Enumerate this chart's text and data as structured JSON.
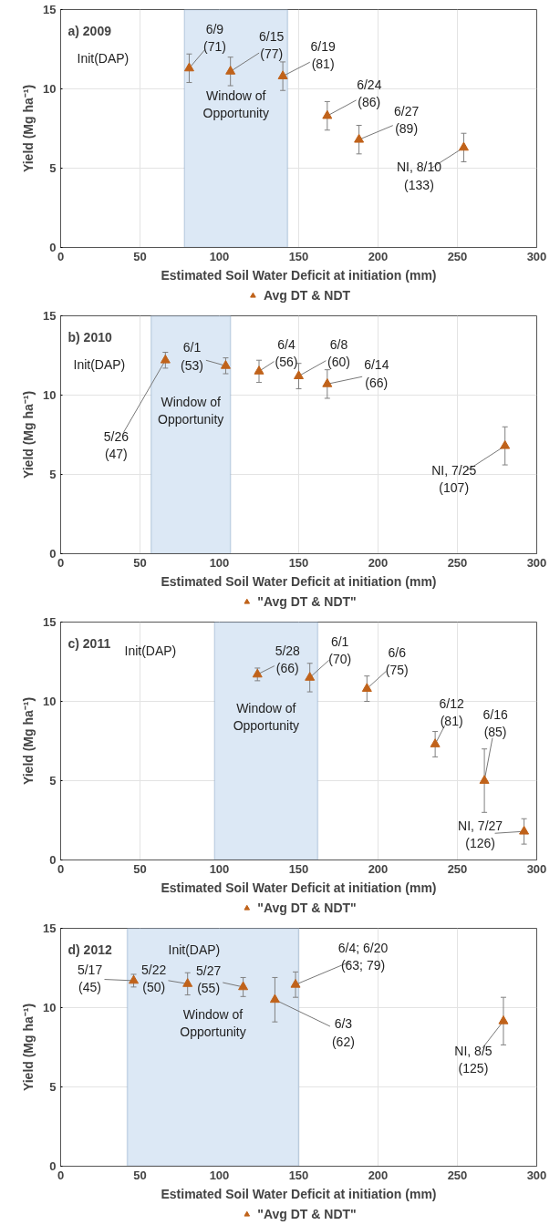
{
  "chart_data": [
    {
      "type": "scatter",
      "title": "a) 2009",
      "xlabel": "Estimated Soil Water Deficit at initiation (mm)",
      "ylabel": "Yield (Mg ha⁻¹)",
      "xlim": [
        0,
        300
      ],
      "ylim": [
        0,
        15
      ],
      "xticks": [
        0,
        50,
        100,
        150,
        200,
        250,
        300
      ],
      "yticks": [
        0,
        5,
        10,
        15
      ],
      "grid": true,
      "legend": "bottom",
      "marker": "triangle",
      "series": [
        {
          "name": "Avg DT & NDT",
          "color": "#c0621a",
          "x": [
            81,
            107,
            140,
            168,
            188,
            254
          ],
          "values": [
            11.3,
            11.1,
            10.8,
            8.3,
            6.8,
            6.3
          ],
          "errors": [
            0.9,
            0.9,
            0.9,
            0.9,
            0.9,
            0.9
          ]
        }
      ],
      "bands": [
        {
          "axis": "x",
          "from": 78,
          "to": 143,
          "label": "Window of Opportunity",
          "color": "#dce8f5"
        }
      ],
      "annotations": [
        "Init(DAP)",
        {
          "text": "6/9 (71)",
          "x": 81,
          "y": 11.3
        },
        {
          "text": "6/15 (77)",
          "x": 107,
          "y": 11.1
        },
        {
          "text": "6/19 (81)",
          "x": 140,
          "y": 10.8
        },
        {
          "text": "6/24 (86)",
          "x": 168,
          "y": 8.3
        },
        {
          "text": "6/27 (89)",
          "x": 188,
          "y": 6.8
        },
        {
          "text": "NI, 8/10 (133)",
          "x": 254,
          "y": 6.3
        }
      ]
    },
    {
      "type": "scatter",
      "title": "b) 2010",
      "xlabel": "Estimated Soil Water Deficit at initiation (mm)",
      "ylabel": "Yield (Mg ha⁻¹)",
      "xlim": [
        0,
        300
      ],
      "ylim": [
        0,
        15
      ],
      "xticks": [
        0,
        50,
        100,
        150,
        200,
        250,
        300
      ],
      "yticks": [
        0,
        5,
        10,
        15
      ],
      "grid": true,
      "legend": "bottom",
      "marker": "triangle",
      "series": [
        {
          "name": "\"Avg DT & NDT\"",
          "color": "#c0621a",
          "x": [
            66,
            104,
            125,
            150,
            168,
            280
          ],
          "values": [
            12.2,
            11.85,
            11.5,
            11.2,
            10.7,
            6.8
          ],
          "errors": [
            0.5,
            0.5,
            0.7,
            0.8,
            0.9,
            1.2
          ]
        }
      ],
      "bands": [
        {
          "axis": "x",
          "from": 57,
          "to": 107,
          "label": "Window of Opportunity",
          "color": "#dce8f5"
        }
      ],
      "annotations": [
        "Init(DAP)",
        {
          "text": "5/26 (47)",
          "x": 66,
          "y": 12.2
        },
        {
          "text": "6/1 (53)",
          "x": 104,
          "y": 11.85
        },
        {
          "text": "6/4 (56)",
          "x": 125,
          "y": 11.5
        },
        {
          "text": "6/8 (60)",
          "x": 150,
          "y": 11.2
        },
        {
          "text": "6/14 (66)",
          "x": 168,
          "y": 10.7
        },
        {
          "text": "NI, 7/25 (107)",
          "x": 280,
          "y": 6.8
        }
      ]
    },
    {
      "type": "scatter",
      "title": "c) 2011",
      "xlabel": "Estimated Soil Water Deficit at initiation (mm)",
      "ylabel": "Yield (Mg ha⁻¹)",
      "xlim": [
        0,
        300
      ],
      "ylim": [
        0,
        15
      ],
      "xticks": [
        0,
        50,
        100,
        150,
        200,
        250,
        300
      ],
      "yticks": [
        0,
        5,
        10,
        15
      ],
      "grid": true,
      "legend": "bottom",
      "marker": "triangle",
      "series": [
        {
          "name": "\"Avg DT & NDT\"",
          "color": "#c0621a",
          "x": [
            124,
            157,
            193,
            236,
            267,
            292
          ],
          "values": [
            11.7,
            11.5,
            10.8,
            7.3,
            5.0,
            1.8
          ],
          "errors": [
            0.4,
            0.9,
            0.8,
            0.8,
            2.0,
            0.8
          ]
        }
      ],
      "bands": [
        {
          "axis": "x",
          "from": 97,
          "to": 162,
          "label": "Window of Opportunity",
          "color": "#dce8f5"
        }
      ],
      "annotations": [
        "Init(DAP)",
        {
          "text": "5/28 (66)",
          "x": 124,
          "y": 11.7
        },
        {
          "text": "6/1 (70)",
          "x": 157,
          "y": 11.5
        },
        {
          "text": "6/6 (75)",
          "x": 193,
          "y": 10.8
        },
        {
          "text": "6/12 (81)",
          "x": 236,
          "y": 7.3
        },
        {
          "text": "6/16 (85)",
          "x": 267,
          "y": 5.0
        },
        {
          "text": "NI, 7/27 (126)",
          "x": 292,
          "y": 1.8
        }
      ]
    },
    {
      "type": "scatter",
      "title": "d) 2012",
      "xlabel": "Estimated Soil Water Deficit at initiation (mm)",
      "ylabel": "Yield (Mg ha⁻¹)",
      "xlim": [
        0,
        300
      ],
      "ylim": [
        0,
        15
      ],
      "xticks": [
        0,
        50,
        100,
        150,
        200,
        250,
        300
      ],
      "yticks": [
        0,
        5,
        10,
        15
      ],
      "grid": true,
      "legend": "bottom",
      "marker": "triangle",
      "series": [
        {
          "name": "\"Avg DT & NDT\"",
          "color": "#c0621a",
          "x": [
            46,
            80,
            115,
            135,
            148,
            279
          ],
          "values": [
            11.7,
            11.5,
            11.3,
            10.5,
            11.45,
            9.15
          ],
          "errors": [
            0.4,
            0.7,
            0.6,
            1.4,
            0.8,
            1.5
          ]
        }
      ],
      "bands": [
        {
          "axis": "x",
          "from": 42,
          "to": 150,
          "label": "Window of Opportunity",
          "color": "#dce8f5"
        }
      ],
      "annotations": [
        "Init(DAP)",
        {
          "text": "5/17 (45)",
          "x": 46,
          "y": 11.7
        },
        {
          "text": "5/22 (50)",
          "x": 80,
          "y": 11.5
        },
        {
          "text": "5/27 (55)",
          "x": 115,
          "y": 11.3
        },
        {
          "text": "6/3 (62)",
          "x": 135,
          "y": 10.5
        },
        {
          "text": "6/4; 6/20 (63; 79)",
          "x": 148,
          "y": 11.45
        },
        {
          "text": "NI, 8/5 (125)",
          "x": 279,
          "y": 9.15
        }
      ]
    }
  ]
}
